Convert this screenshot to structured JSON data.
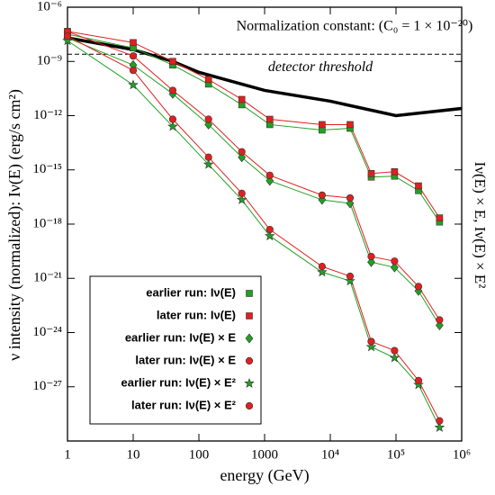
{
  "chart_data": {
    "type": "line",
    "log_x": true,
    "log_y": true,
    "xlabel": "energy (GeV)",
    "ylabel": "ν intensity (normalized): Iν(E) (erg/s cm²)",
    "y2label": "Iν(E) × E, Iν(E) × E²",
    "annotation": "Normalization constant: (C₀ = 1 × 10⁻²⁰)",
    "xlim": [
      1,
      1000000
    ],
    "ylim": [
      1e-30,
      1e-06
    ],
    "xticks": [
      1,
      10,
      100,
      1000,
      {
        "value": 10000,
        "label": "10⁴"
      },
      {
        "value": 100000,
        "label": "10⁵"
      },
      {
        "value": 1000000,
        "label": "10⁶"
      }
    ],
    "yticks": [
      {
        "value": 1e-06,
        "label": "10⁻⁶"
      },
      {
        "value": 1e-09,
        "label": "10⁻⁹"
      },
      {
        "value": 1e-12,
        "label": "10⁻¹²"
      },
      {
        "value": 1e-15,
        "label": "10⁻¹⁵"
      },
      {
        "value": 1e-18,
        "label": "10⁻¹⁸"
      },
      {
        "value": 1e-21,
        "label": "10⁻²¹"
      },
      {
        "value": 1e-24,
        "label": "10⁻²⁴"
      },
      {
        "value": 1e-27,
        "label": "10⁻²⁷"
      }
    ],
    "threshold": {
      "label": "detector threshold",
      "value": 2.5e-09
    },
    "threshold_curve": {
      "x": [
        1,
        10,
        40,
        100,
        1000,
        10000,
        100000,
        1000000
      ],
      "values": [
        2e-08,
        4.5e-09,
        1e-09,
        2.5e-10,
        2.5e-11,
        6.3e-12,
        1e-12,
        2.5e-12
      ],
      "color": "#000000"
    },
    "x": [
      1,
      10,
      40,
      140,
      450,
      1200,
      7500,
      20000,
      42000,
      95000,
      220000,
      460000
    ],
    "series": [
      {
        "name": "earlier run: Iν(E)",
        "color": "#22a022",
        "marker": "square",
        "values": [
          3.2e-08,
          5.6e-09,
          6.3e-10,
          5.6e-11,
          4e-12,
          3.2e-13,
          1.6e-13,
          2e-13,
          4e-16,
          4.5e-16,
          7.1e-17,
          1.3e-18
        ]
      },
      {
        "name": "later run: Iν(E)",
        "color": "#e02020",
        "marker": "square",
        "values": [
          4.6e-08,
          1.1e-08,
          1e-09,
          1e-10,
          7.9e-12,
          6.3e-13,
          3.2e-13,
          3.2e-13,
          6.3e-16,
          7.9e-16,
          1.3e-16,
          2.2e-18
        ]
      },
      {
        "name": "earlier run: Iν(E) × E",
        "color": "#22a022",
        "marker": "diamond",
        "values": [
          2e-08,
          6.3e-10,
          1.6e-11,
          3.2e-13,
          5e-15,
          2.5e-16,
          2.2e-17,
          1.4e-17,
          7.9e-21,
          4e-21,
          2e-22,
          2.5e-24
        ]
      },
      {
        "name": "later run: Iν(E) × E",
        "color": "#e02020",
        "marker": "circle",
        "values": [
          4.5e-08,
          2e-09,
          2.5e-11,
          6.3e-13,
          1e-14,
          5e-16,
          4e-17,
          2.8e-17,
          1.6e-20,
          8.9e-21,
          3.5e-22,
          5e-24
        ]
      },
      {
        "name": "earlier run: Iν(E) × E²",
        "color": "#22a022",
        "marker": "star",
        "values": [
          1.4e-08,
          5e-11,
          2.5e-13,
          2e-15,
          2.2e-17,
          2.2e-19,
          2.2e-21,
          7.1e-22,
          1.6e-25,
          4e-26,
          1.3e-27,
          5.6e-30
        ]
      },
      {
        "name": "later run: Iν(E) × E²",
        "color": "#e02020",
        "marker": "circle",
        "values": [
          2.5e-08,
          3.2e-10,
          6.3e-13,
          5e-15,
          5e-17,
          5e-19,
          4.5e-21,
          1.3e-21,
          3.2e-25,
          1e-25,
          2.2e-27,
          1.3e-29
        ]
      }
    ]
  }
}
